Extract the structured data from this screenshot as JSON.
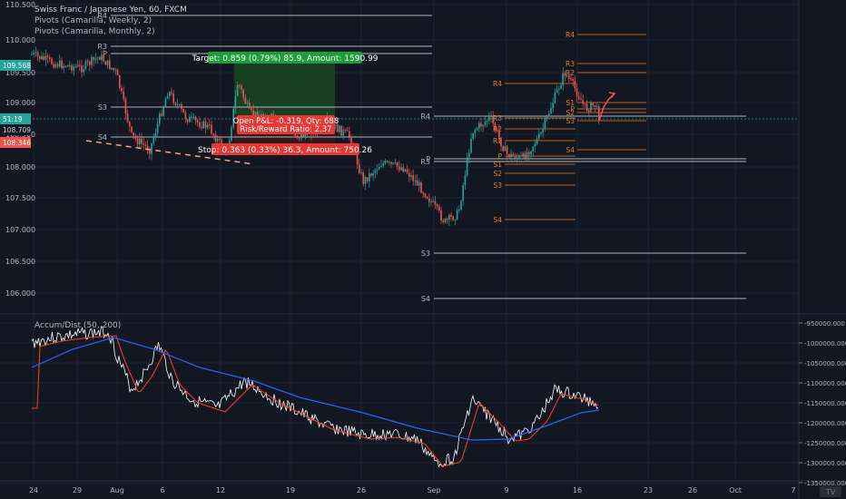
{
  "window": {
    "title": "Swiss Franc / Japanese Yen, 60, FXCM",
    "indicators": [
      "Pivots (Camarilla, Weekly, 2)",
      "Pivots (Camarilla, Monthly, 2)"
    ],
    "sub_indicator": "Accum/Dist (50, 200)"
  },
  "price_axis": {
    "labels": [
      "110.500",
      "110.000",
      "109.500",
      "109.000",
      "108.500",
      "108.000",
      "107.500",
      "107.000",
      "106.500",
      "106.000"
    ],
    "badges": [
      {
        "text": "109.568",
        "color": "#26a69a"
      },
      {
        "text": "51:19",
        "color": "#26a69a"
      },
      {
        "text": "108.709",
        "color": "#d1d4dc"
      },
      {
        "text": "108.346",
        "color": "#ef5350"
      }
    ]
  },
  "osc_axis": {
    "labels": [
      "-950000.000",
      "-1000000.000",
      "-1050000.000",
      "-1100000.000",
      "-1150000.000",
      "-1200000.000",
      "-1250000.000",
      "-1300000.000",
      "-1350000.000"
    ]
  },
  "time_axis": {
    "labels": [
      "24",
      "29",
      "Aug",
      "6",
      "12",
      "19",
      "26",
      "Sep",
      "9",
      "16",
      "23",
      "26",
      "Oct",
      "7"
    ]
  },
  "trade_boxes": {
    "target": "Target: 0.859 (0.79%) 85.9, Amount: 1590.99",
    "pnl": "Open P&L: -0.319, Qty: 688",
    "rr": "Risk/Reward Ratio: 2.37",
    "stop": "Stop: 0.363 (0.33%) 36.3, Amount: 750.26"
  },
  "pivot_labels": {
    "weekly": [
      "R4",
      "R3",
      "P",
      "S3",
      "S4"
    ],
    "monthly_left": [
      "R4",
      "P",
      "S3",
      "S4"
    ],
    "orange": [
      "R4",
      "R3",
      "R2",
      "R1",
      "P",
      "S1",
      "S2",
      "S3",
      "S4"
    ],
    "orange_right": [
      "R4",
      "R3",
      "R2",
      "S1",
      "S2",
      "S3",
      "S4"
    ]
  },
  "colors": {
    "background": "#131722",
    "grid": "#1e222d",
    "axis_text": "#b2b5be",
    "up": "#26a69a",
    "down": "#ef5350",
    "pivot_white": "#b2b5be",
    "pivot_orange": "#e67e22",
    "target_zone": "#1b5e20",
    "stop_zone": "#5a1a1a",
    "ad_line": "#ffffff",
    "ma_fast": "#ff3b30",
    "ma_slow": "#2962ff"
  }
}
